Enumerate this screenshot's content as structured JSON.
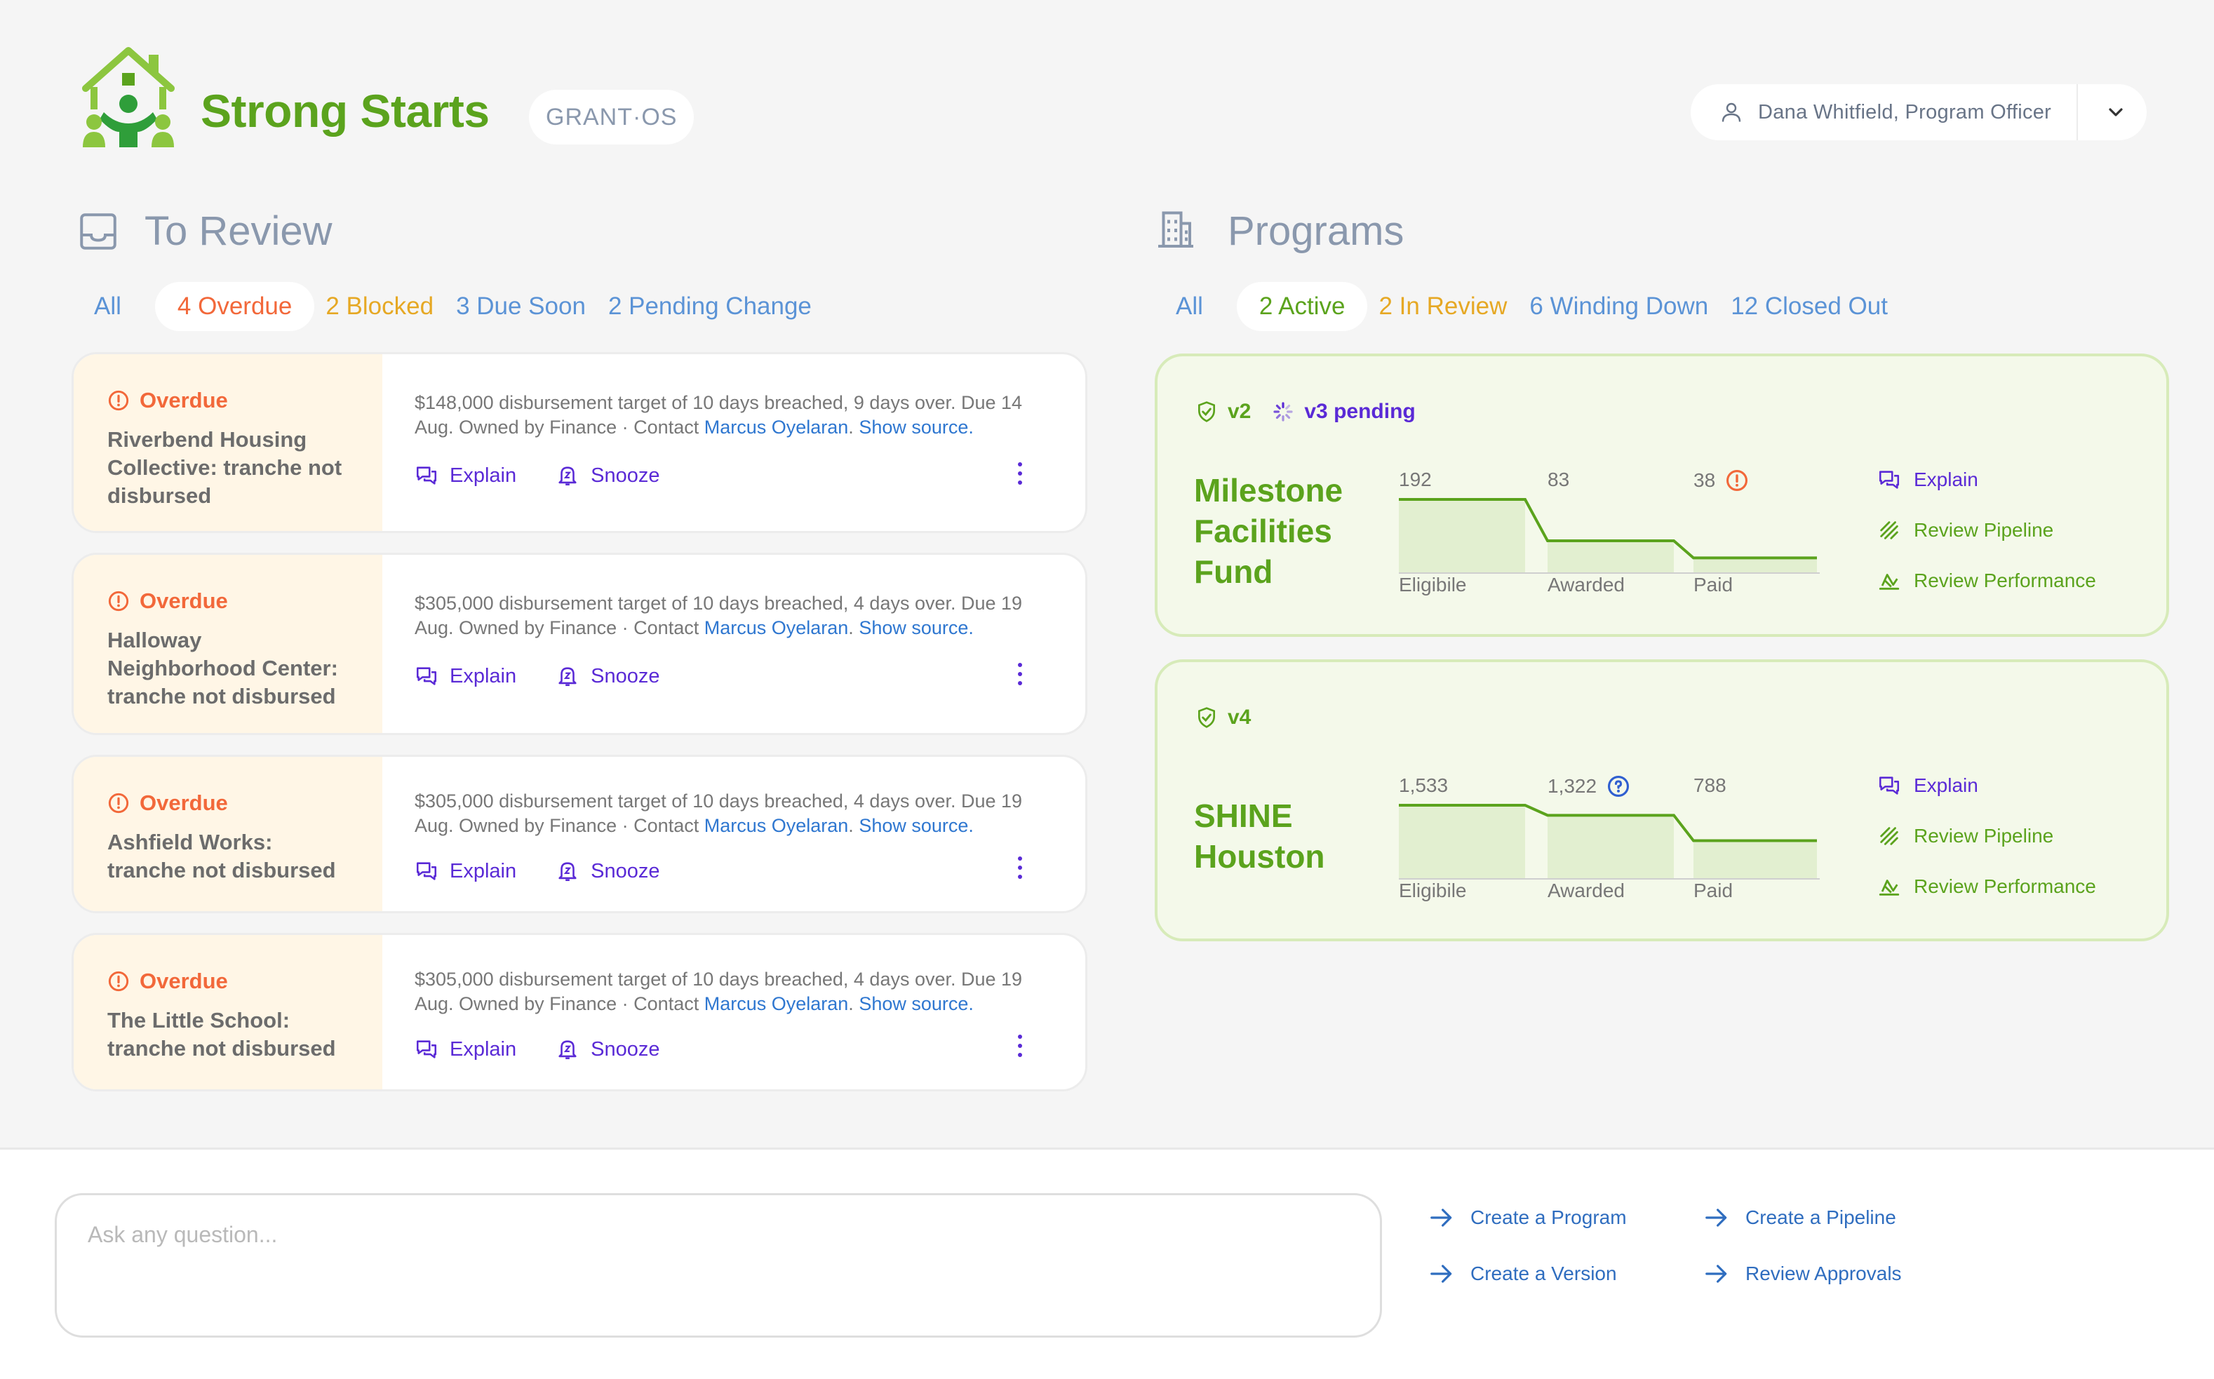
{
  "app": {
    "brand": "Strong Starts",
    "badge": "GRANT·OS",
    "user": "Dana Whitfield, Program Officer"
  },
  "colors": {
    "brand_green": "#5ba31d",
    "overdue": "#f2683a",
    "blocked": "#e6a824",
    "link_blue": "#5b93d6",
    "action_purple": "#5a2ad6"
  },
  "review": {
    "title": "To Review",
    "tabs": [
      "All",
      "4 Overdue",
      "2 Blocked",
      "3 Due Soon",
      "2 Pending Change"
    ],
    "actions": {
      "explain": "Explain",
      "snooze": "Snooze"
    },
    "cards": [
      {
        "status": "Overdue",
        "title": "Riverbend Housing Collective: tranche not disbursed",
        "desc_line1": "$148,000 disbursement target of 10 days breached, 9 days over. Due 14",
        "desc_line2": "Aug. Owned by Finance · Contact ",
        "contact": "Marcus Oyelaran",
        "source": "Show source."
      },
      {
        "status": "Overdue",
        "title": "Halloway Neighborhood Center: tranche not disbursed",
        "desc_line1": "$305,000 disbursement target of 10 days breached, 4 days over. Due 19",
        "desc_line2": "Aug. Owned by Finance · Contact ",
        "contact": "Marcus Oyelaran",
        "source": "Show source."
      },
      {
        "status": "Overdue",
        "title": "Ashfield Works: tranche not disbursed",
        "desc_line1": "$305,000 disbursement target of 10 days breached, 4 days over. Due 19",
        "desc_line2": "Aug. Owned by Finance · Contact ",
        "contact": "Marcus Oyelaran",
        "source": "Show source."
      },
      {
        "status": "Overdue",
        "title": "The Little School: tranche not disbursed",
        "desc_line1": "$305,000 disbursement target of 10 days breached, 4 days over. Due 19",
        "desc_line2": "Aug. Owned by Finance · Contact ",
        "contact": "Marcus Oyelaran",
        "source": "Show source."
      }
    ]
  },
  "programs": {
    "title": "Programs",
    "tabs": [
      "All",
      "2 Active",
      "2 In Review",
      "6 Winding Down",
      "12 Closed Out"
    ],
    "actions": {
      "explain": "Explain",
      "pipeline": "Review Pipeline",
      "performance": "Review Performance"
    },
    "stage_labels": [
      "Eligibile",
      "Awarded",
      "Paid"
    ],
    "cards": [
      {
        "version": "v2",
        "pending": "v3 pending",
        "name_lines": [
          "Milestone",
          "Facilities",
          "Fund"
        ],
        "counts": [
          "192",
          "83",
          "38"
        ],
        "values": [
          192,
          83,
          38
        ],
        "flag": "warning-icon"
      },
      {
        "version": "v4",
        "name_lines": [
          "SHINE",
          "Houston"
        ],
        "counts": [
          "1,533",
          "1,322",
          "788"
        ],
        "values": [
          1533,
          1322,
          788
        ],
        "flag": "question-icon"
      }
    ]
  },
  "bottom": {
    "placeholder": "Ask any question...",
    "links": [
      "Create a Program",
      "Create a Pipeline",
      "Create a Version",
      "Review Approvals"
    ]
  }
}
